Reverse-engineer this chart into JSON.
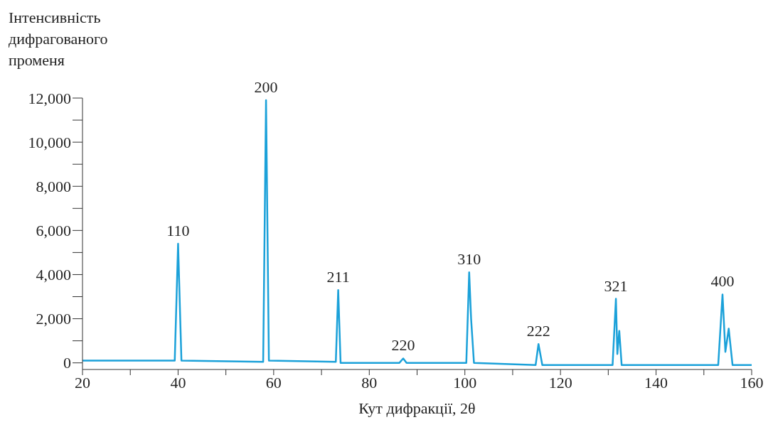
{
  "chart_data": {
    "type": "line",
    "ylabel": "Інтенсивність дифрагованого променя",
    "xlabel": "Кут дифракції, 2θ",
    "x": [
      20,
      39.3,
      40.0,
      40.7,
      57.8,
      58.4,
      59.0,
      73.0,
      73.5,
      74.0,
      86.3,
      87.1,
      87.8,
      100.3,
      100.9,
      101.3,
      101.9,
      114.8,
      115.4,
      115.7,
      116.2,
      130.9,
      131.6,
      131.9,
      132.3,
      132.8,
      153.0,
      153.9,
      154.5,
      155.2,
      156.0,
      160
    ],
    "series": [
      {
        "color": "#1ba1d9",
        "values": [
          100,
          100,
          5400,
          100,
          50,
          11900,
          100,
          50,
          3300,
          0,
          0,
          200,
          0,
          0,
          4100,
          2000,
          0,
          -100,
          850,
          500,
          -100,
          -100,
          2900,
          400,
          1450,
          -100,
          -100,
          3100,
          500,
          1550,
          -100,
          -100
        ]
      }
    ],
    "xlim": [
      20,
      160
    ],
    "xticks": [
      20,
      {
        "value": 30,
        "label": null
      },
      40,
      {
        "value": 50,
        "label": null
      },
      60,
      {
        "value": 70,
        "label": null
      },
      80,
      {
        "value": 90,
        "label": null
      },
      100,
      {
        "value": 110,
        "label": null
      },
      120,
      {
        "value": 130,
        "label": null
      },
      140,
      {
        "value": 150,
        "label": null
      },
      160
    ],
    "ylim": [
      -300,
      12000
    ],
    "yticks": [
      0,
      {
        "value": 1000,
        "label": null
      },
      {
        "value": 2000,
        "label": "2,000"
      },
      {
        "value": 3000,
        "label": null
      },
      {
        "value": 4000,
        "label": "4,000"
      },
      {
        "value": 5000,
        "label": null
      },
      {
        "value": 6000,
        "label": "6,000"
      },
      {
        "value": 7000,
        "label": null
      },
      {
        "value": 8000,
        "label": "8,000"
      },
      {
        "value": 9000,
        "label": null
      },
      {
        "value": 10000,
        "label": "10,000"
      },
      {
        "value": 11000,
        "label": null
      },
      {
        "value": 12000,
        "label": "12,000"
      }
    ],
    "annotations": [
      {
        "text": "110",
        "x": 40.0,
        "y": 5400
      },
      {
        "text": "200",
        "x": 58.4,
        "y": 11900
      },
      {
        "text": "211",
        "x": 73.5,
        "y": 3300
      },
      {
        "text": "220",
        "x": 87.1,
        "y": 200
      },
      {
        "text": "310",
        "x": 100.9,
        "y": 4100
      },
      {
        "text": "222",
        "x": 115.4,
        "y": 850
      },
      {
        "text": "321",
        "x": 131.6,
        "y": 2900
      },
      {
        "text": "400",
        "x": 153.9,
        "y": 3100
      }
    ],
    "grid": false,
    "legend": false,
    "marker": "none",
    "line_style": "solid"
  }
}
